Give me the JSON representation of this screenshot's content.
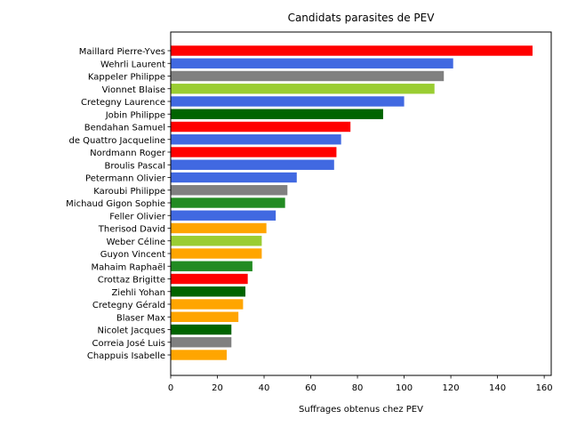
{
  "chart_data": {
    "type": "bar",
    "orientation": "horizontal",
    "title": "Candidats parasites de PEV",
    "xlabel": "Suffrages obtenus chez PEV",
    "ylabel": "",
    "xlim": [
      0,
      163
    ],
    "xticks": [
      0,
      20,
      40,
      60,
      80,
      100,
      120,
      140,
      160
    ],
    "grid": false,
    "categories": [
      "Maillard Pierre-Yves",
      "Wehrli Laurent",
      "Kappeler Philippe",
      "Vionnet Blaise",
      "Cretegny Laurence",
      "Jobin Philippe",
      "Bendahan Samuel",
      "de Quattro Jacqueline",
      "Nordmann Roger",
      "Broulis Pascal",
      "Petermann Olivier",
      "Karoubi Philippe",
      "Michaud Gigon Sophie",
      "Feller Olivier",
      "Therisod David",
      "Weber Céline",
      "Guyon Vincent",
      "Mahaim Raphaël",
      "Crottaz Brigitte",
      "Ziehli Yohan",
      "Cretegny Gérald",
      "Blaser Max",
      "Nicolet Jacques",
      "Correia José Luis",
      "Chappuis Isabelle"
    ],
    "values": [
      155,
      121,
      117,
      113,
      100,
      91,
      77,
      73,
      71,
      70,
      54,
      50,
      49,
      45,
      41,
      39,
      39,
      35,
      33,
      32,
      31,
      29,
      26,
      26,
      24
    ],
    "colors": [
      "#ff0000",
      "#4169e1",
      "#808080",
      "#9acd32",
      "#4169e1",
      "#006400",
      "#ff0000",
      "#4169e1",
      "#ff0000",
      "#4169e1",
      "#4169e1",
      "#808080",
      "#228b22",
      "#4169e1",
      "#ffa500",
      "#9acd32",
      "#ffa500",
      "#228b22",
      "#ff0000",
      "#006400",
      "#ffa500",
      "#ffa500",
      "#006400",
      "#808080",
      "#ffa500"
    ]
  }
}
